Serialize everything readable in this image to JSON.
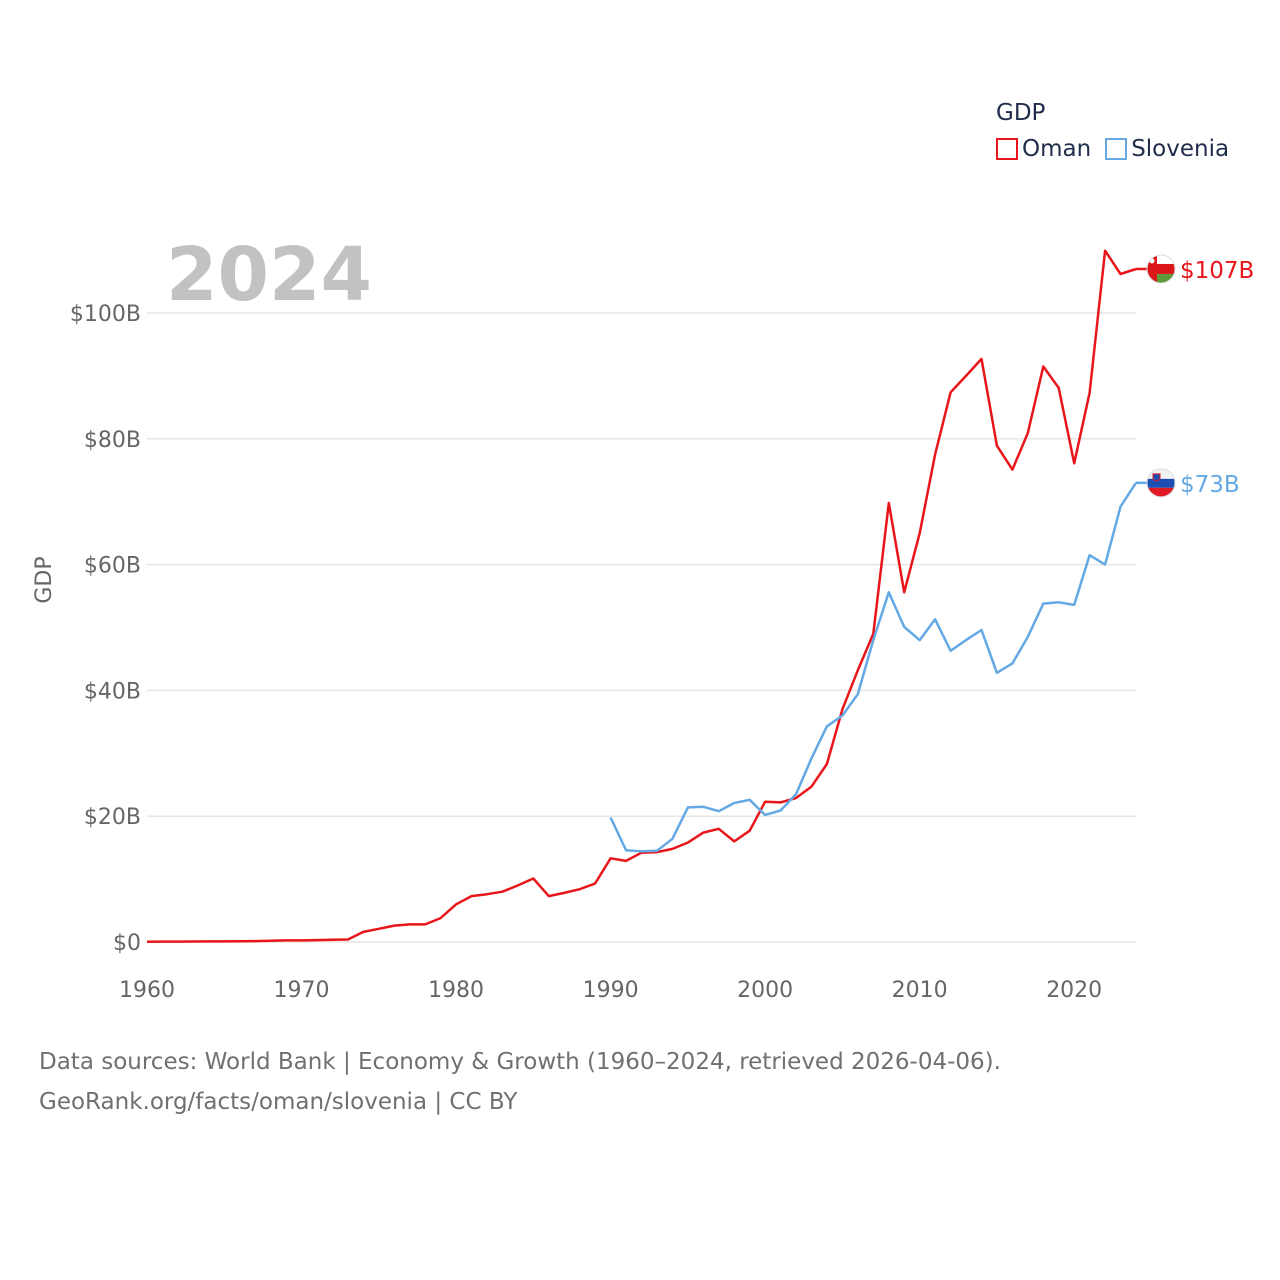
{
  "chart_data": {
    "type": "line",
    "title": "",
    "year_label": "2024",
    "ylabel": "GDP",
    "xlabel": "",
    "xlim": [
      1960,
      2024
    ],
    "ylim": [
      0,
      110
    ],
    "x_ticks": [
      1960,
      1970,
      1980,
      1990,
      2000,
      2010,
      2020
    ],
    "x_tick_labels": [
      "1960",
      "1970",
      "1980",
      "1990",
      "2000",
      "2010",
      "2020"
    ],
    "y_ticks": [
      0,
      20,
      40,
      60,
      80,
      100
    ],
    "y_tick_labels": [
      "$0",
      "$20B",
      "$40B",
      "$60B",
      "$80B",
      "$100B"
    ],
    "legend": {
      "title": "GDP",
      "placement": "top-right"
    },
    "series": [
      {
        "name": "Oman",
        "color": "#e8161b",
        "end_label": "$107B",
        "flag": "oman-flag",
        "x": [
          1960,
          1961,
          1962,
          1963,
          1964,
          1965,
          1966,
          1967,
          1968,
          1969,
          1970,
          1971,
          1972,
          1973,
          1974,
          1975,
          1976,
          1977,
          1978,
          1979,
          1980,
          1981,
          1982,
          1983,
          1984,
          1985,
          1986,
          1987,
          1988,
          1989,
          1990,
          1991,
          1992,
          1993,
          1994,
          1995,
          1996,
          1997,
          1998,
          1999,
          2000,
          2001,
          2002,
          2003,
          2004,
          2005,
          2006,
          2007,
          2008,
          2009,
          2010,
          2011,
          2012,
          2013,
          2014,
          2015,
          2016,
          2017,
          2018,
          2019,
          2020,
          2021,
          2022,
          2023,
          2024
        ],
        "values": [
          0.05,
          0.06,
          0.07,
          0.08,
          0.09,
          0.1,
          0.11,
          0.15,
          0.2,
          0.25,
          0.26,
          0.3,
          0.35,
          0.4,
          1.6,
          2.1,
          2.6,
          2.8,
          2.8,
          3.8,
          6.0,
          7.3,
          7.6,
          8.0,
          9.0,
          10.1,
          7.3,
          7.8,
          8.4,
          9.3,
          13.3,
          12.9,
          14.2,
          14.3,
          14.8,
          15.8,
          17.4,
          18.0,
          16.0,
          17.7,
          22.3,
          22.2,
          22.9,
          24.7,
          28.3,
          37.0,
          43.2,
          49.0,
          69.8,
          55.6,
          65.0,
          77.5,
          87.4,
          90.0,
          92.7,
          78.9,
          75.1,
          80.9,
          91.5,
          88.1,
          76.1,
          87.3,
          109.9,
          106.2,
          107.0
        ]
      },
      {
        "name": "Slovenia",
        "color": "#64a8e4",
        "end_label": "$73B",
        "flag": "slovenia-flag",
        "x": [
          1990,
          1991,
          1992,
          1993,
          1994,
          1995,
          1996,
          1997,
          1998,
          1999,
          2000,
          2001,
          2002,
          2003,
          2004,
          2005,
          2006,
          2007,
          2008,
          2009,
          2010,
          2011,
          2012,
          2013,
          2014,
          2015,
          2016,
          2017,
          2018,
          2019,
          2020,
          2021,
          2022,
          2023,
          2024
        ],
        "values": [
          19.8,
          14.6,
          14.4,
          14.5,
          16.4,
          21.4,
          21.5,
          20.8,
          22.1,
          22.6,
          20.2,
          20.9,
          23.5,
          29.2,
          34.3,
          36.0,
          39.4,
          48.0,
          55.6,
          50.1,
          48.0,
          51.3,
          46.3,
          48.0,
          49.6,
          42.8,
          44.3,
          48.5,
          53.8,
          54.0,
          53.6,
          61.5,
          60.0,
          69.2,
          73.0
        ]
      }
    ]
  },
  "footer": {
    "line1": "Data sources: World Bank | Economy & Growth (1960–2024, retrieved 2026-04-06).",
    "line2": "GeoRank.org/facts/oman/slovenia | CC BY"
  }
}
